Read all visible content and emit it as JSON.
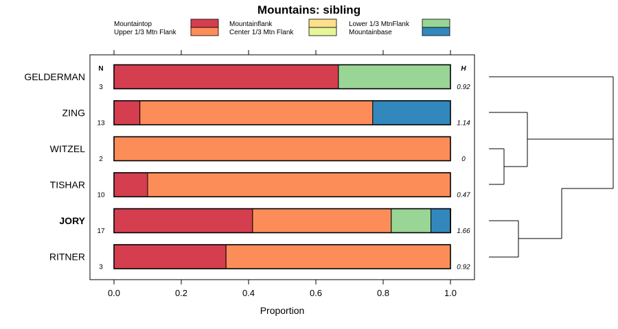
{
  "chart_data": {
    "type": "bar",
    "stacked": true,
    "orientation": "horizontal",
    "title": "Mountains: sibling",
    "xlabel": "Proportion",
    "xlim": [
      0,
      1
    ],
    "xticks": [
      0.0,
      0.2,
      0.4,
      0.6,
      0.8,
      1.0
    ],
    "xtick_labels": [
      "0.0",
      "0.2",
      "0.4",
      "0.6",
      "0.8",
      "1.0"
    ],
    "n_header": "N",
    "h_header": "H",
    "legend": [
      {
        "name": "Mountaintop",
        "color": "#d53e4f"
      },
      {
        "name": "Upper 1/3 Mtn Flank",
        "color": "#fc8d59"
      },
      {
        "name": "Mountainflank",
        "color": "#fee08b"
      },
      {
        "name": "Center 1/3 Mtn Flank",
        "color": "#e6f598"
      },
      {
        "name": "Lower 1/3 MtnFlank",
        "color": "#99d594"
      },
      {
        "name": "Mountainbase",
        "color": "#3288bd"
      }
    ],
    "categories": [
      {
        "label": "GELDERMAN",
        "n": "3",
        "h": "0.92",
        "bold": false,
        "values": [
          0.667,
          0,
          0,
          0,
          0.333,
          0
        ]
      },
      {
        "label": "ZING",
        "n": "13",
        "h": "1.14",
        "bold": false,
        "values": [
          0.077,
          0.692,
          0,
          0,
          0,
          0.231
        ]
      },
      {
        "label": "WITZEL",
        "n": "2",
        "h": "0",
        "bold": false,
        "values": [
          0,
          1.0,
          0,
          0,
          0,
          0
        ]
      },
      {
        "label": "TISHAR",
        "n": "10",
        "h": "0.47",
        "bold": false,
        "values": [
          0.1,
          0.9,
          0,
          0,
          0,
          0
        ]
      },
      {
        "label": "JORY",
        "n": "17",
        "h": "1.66",
        "bold": true,
        "values": [
          0.412,
          0.412,
          0,
          0,
          0.118,
          0.059
        ]
      },
      {
        "label": "RITNER",
        "n": "3",
        "h": "0.92",
        "bold": false,
        "values": [
          0.333,
          0.667,
          0,
          0,
          0,
          0
        ]
      }
    ],
    "dendrogram": "((GELDERMAN,(ZING,(WITZEL,TISHAR))),(JORY,RITNER))"
  }
}
